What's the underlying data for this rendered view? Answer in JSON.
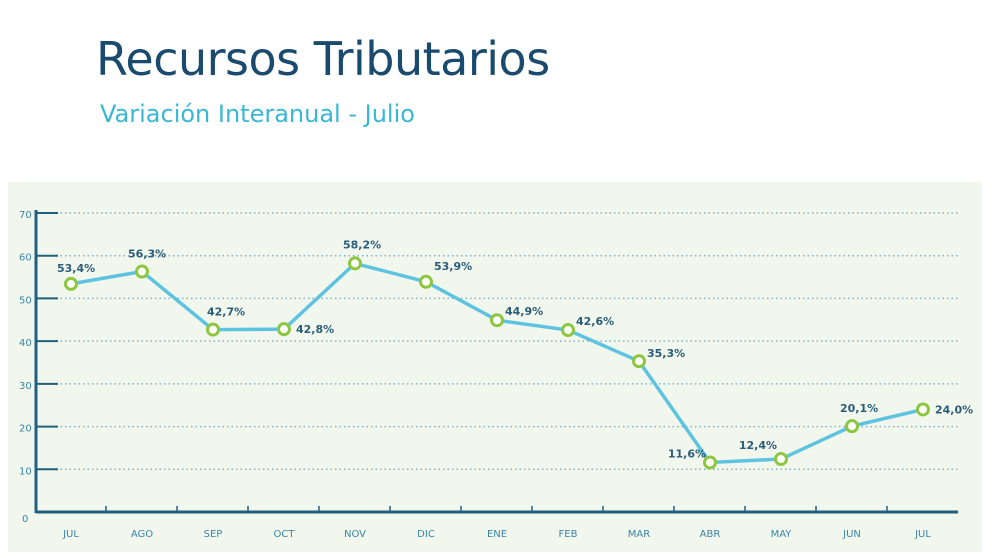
{
  "header": {
    "title": "Recursos Tributarios",
    "subtitle": "Variación Interanual - Julio"
  },
  "chart_data": {
    "type": "line",
    "title": "Recursos Tributarios",
    "subtitle": "Variación Interanual - Julio",
    "categories": [
      "JUL",
      "AGO",
      "SEP",
      "OCT",
      "NOV",
      "DIC",
      "ENE",
      "FEB",
      "MAR",
      "ABR",
      "MAY",
      "JUN",
      "JUL"
    ],
    "values": [
      53.4,
      56.3,
      42.7,
      42.8,
      58.2,
      53.9,
      44.9,
      42.6,
      35.3,
      11.6,
      12.4,
      20.1,
      24.0
    ],
    "data_labels": [
      "53,4%",
      "56,3%",
      "42,7%",
      "42,8%",
      "58,2%",
      "53,9%",
      "44,9%",
      "42,6%",
      "35,3%",
      "11,6%",
      "12,4%",
      "20,1%",
      "24,0%"
    ],
    "yticks": [
      0,
      10,
      20,
      30,
      40,
      50,
      60,
      70
    ],
    "ylim": [
      0,
      70
    ],
    "grid": true,
    "colors": {
      "line": "#5ec3e0",
      "marker": "#8dc63f",
      "axis": "#1f5f80",
      "title": "#1a4a6e",
      "subtitle": "#3ab7d4",
      "background": "#f2f7ee"
    }
  }
}
